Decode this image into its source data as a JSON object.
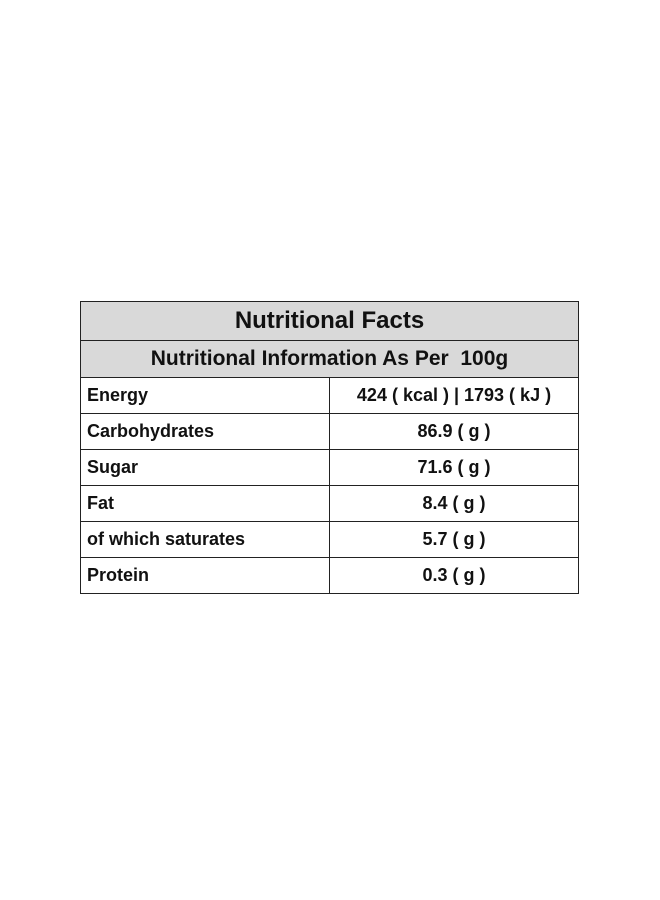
{
  "table": {
    "title": "Nutritional Facts",
    "subtitle": "Nutritional Information As Per  100g",
    "rows": [
      {
        "label": "Energy",
        "value": "424 ( kcal ) | 1793 ( kJ )"
      },
      {
        "label": "Carbohydrates",
        "value": "86.9 ( g )"
      },
      {
        "label": "Sugar",
        "value": "71.6 ( g )"
      },
      {
        "label": "Fat",
        "value": "8.4 ( g )"
      },
      {
        "label": "of which saturates",
        "value": "5.7 ( g )"
      },
      {
        "label": "Protein",
        "value": "0.3 ( g )"
      }
    ],
    "colors": {
      "header_background": "#d9d9d9",
      "border": "#222222",
      "text": "#111111"
    }
  }
}
